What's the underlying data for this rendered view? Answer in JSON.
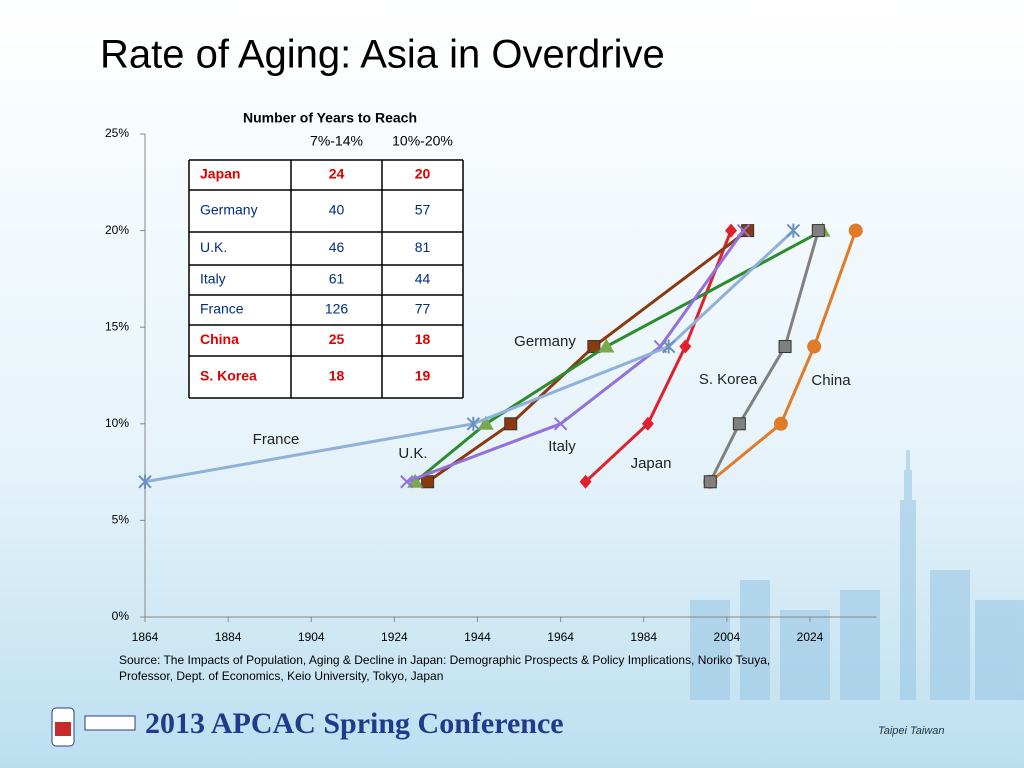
{
  "title": "Rate of Aging: Asia in Overdrive",
  "chart_data": {
    "type": "line",
    "xlim": [
      1864,
      2040
    ],
    "xticks": [
      1864,
      1884,
      1904,
      1924,
      1944,
      1964,
      1984,
      2004,
      2024
    ],
    "ylim": [
      0,
      25
    ],
    "yticks": [
      {
        "value": 0,
        "label": "0%"
      },
      {
        "value": 5,
        "label": "5%"
      },
      {
        "value": 10,
        "label": "10%"
      },
      {
        "value": 15,
        "label": "15%"
      },
      {
        "value": 20,
        "label": "20%"
      },
      {
        "value": 25,
        "label": "25%"
      }
    ],
    "series": [
      {
        "name": "Japan",
        "color": "#e0202a",
        "marker": "diamond",
        "x": [
          1970,
          1985,
          1994,
          2005
        ],
        "values": [
          7,
          10,
          14,
          20
        ]
      },
      {
        "name": "Germany",
        "color": "#8b3a0f",
        "marker": "square",
        "x": [
          1932,
          1952,
          1972,
          2009
        ],
        "values": [
          7,
          10,
          14,
          20
        ]
      },
      {
        "name": "U.K.",
        "color": "#2e8b2e",
        "marker": "triangle",
        "x": [
          1929,
          1946,
          1975,
          2027
        ],
        "values": [
          7,
          10,
          14,
          20
        ]
      },
      {
        "name": "Italy",
        "color": "#9370db",
        "marker": "cross",
        "x": [
          1927,
          1964,
          1988,
          2008
        ],
        "values": [
          7,
          10,
          14,
          20
        ]
      },
      {
        "name": "France",
        "color": "#8fb0d8",
        "marker": "star",
        "x": [
          1864,
          1943,
          1990,
          2020
        ],
        "values": [
          7,
          10,
          14,
          20
        ]
      },
      {
        "name": "China",
        "color": "#e07b2a",
        "marker": "circle",
        "x": [
          2000,
          2017,
          2025,
          2035
        ],
        "values": [
          7,
          10,
          14,
          20
        ]
      },
      {
        "name": "S. Korea",
        "color": "#808080",
        "marker": "square",
        "x": [
          2000,
          2007,
          2018,
          2026
        ],
        "values": [
          7,
          10,
          14,
          20
        ]
      }
    ]
  },
  "table": {
    "title": "Number of Years to Reach",
    "columns": [
      "7%-14%",
      "10%-20%"
    ],
    "rows": [
      {
        "name": "Japan",
        "values": [
          24,
          20
        ],
        "color": "#e00000"
      },
      {
        "name": "Germany",
        "values": [
          40,
          57
        ],
        "color": "#002d80"
      },
      {
        "name": "U.K.",
        "values": [
          46,
          81
        ],
        "color": "#002d80"
      },
      {
        "name": "Italy",
        "values": [
          61,
          44
        ],
        "color": "#002d80"
      },
      {
        "name": "France",
        "values": [
          126,
          77
        ],
        "color": "#002d80"
      },
      {
        "name": "China",
        "values": [
          25,
          18
        ],
        "color": "#e00000"
      },
      {
        "name": "S. Korea",
        "values": [
          18,
          19
        ],
        "color": "#e00000"
      }
    ]
  },
  "source": [
    "Source: The Impacts of Population, Aging & Decline in Japan: Demographic Prospects & Policy Implications, Noriko Tsuya,",
    "Professor, Dept. of Economics, Keio University, Tokyo, Japan"
  ],
  "footer": {
    "conference": "2013 APCAC Spring Conference",
    "location": "Taipei Taiwan"
  }
}
